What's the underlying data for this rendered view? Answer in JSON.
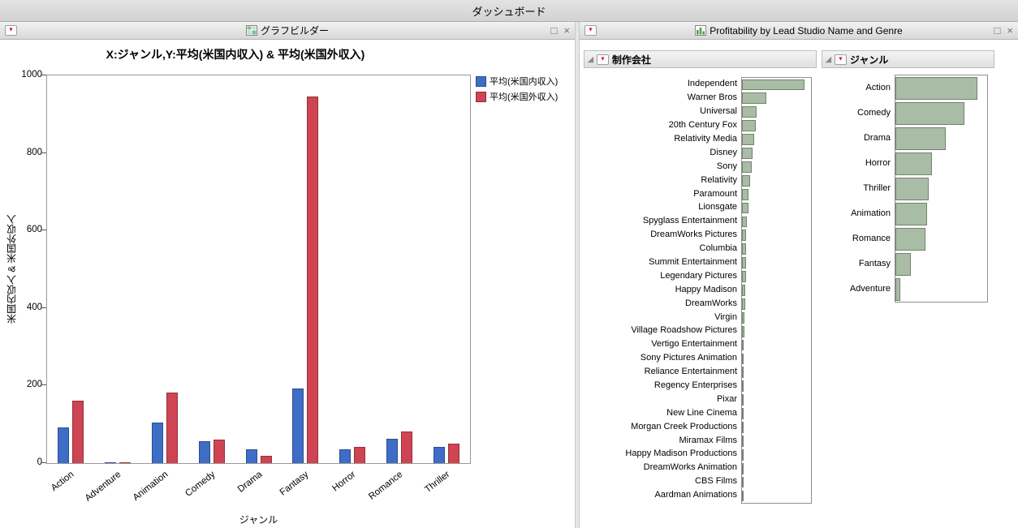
{
  "top_bar": {
    "title": "ダッシュボード"
  },
  "icons": {
    "red_triangle": "▼",
    "collapse": "◢",
    "maximize": "□",
    "close": "×"
  },
  "left_panel": {
    "title": "グラフビルダー"
  },
  "right_panel": {
    "title": "Profitability by Lead Studio Name and Genre"
  },
  "chart_data": [
    {
      "type": "bar",
      "title": "X:ジャンル,Y:平均(米国内収入) & 平均(米国外収入)",
      "xlabel": "ジャンル",
      "ylabel": "米国内収入 & 米国外収入",
      "ylim": [
        0,
        1000
      ],
      "yticks": [
        0,
        200,
        400,
        600,
        800,
        1000
      ],
      "grid": false,
      "legend_position": "right",
      "categories": [
        "Action",
        "Adventure",
        "Animation",
        "Comedy",
        "Drama",
        "Fantasy",
        "Horror",
        "Romance",
        "Thriller"
      ],
      "series": [
        {
          "name": "平均(米国内収入)",
          "color": "#3e6dc6",
          "values": [
            92,
            1,
            105,
            57,
            35,
            192,
            35,
            62,
            42
          ]
        },
        {
          "name": "平均(米国外収入)",
          "color": "#cf4452",
          "values": [
            162,
            1,
            182,
            60,
            18,
            945,
            42,
            82,
            50
          ]
        }
      ]
    },
    {
      "type": "bar",
      "orientation": "horizontal",
      "title": "制作会社",
      "units": "relative bar length (axis not shown), longest = 100",
      "categories": [
        "Independent",
        "Warner Bros",
        "Universal",
        "20th Century Fox",
        "Relativity Media",
        "Disney",
        "Sony",
        "Relativity",
        "Paramount",
        "Lionsgate",
        "Spyglass Entertainment",
        "DreamWorks Pictures",
        "Columbia",
        "Summit Entertainment",
        "Legendary Pictures",
        "Happy Madison",
        "DreamWorks",
        "Virgin",
        "Village Roadshow Pictures",
        "Vertigo Entertainment",
        "Sony Pictures Animation",
        "Reliance Entertainment",
        "Regency Enterprises",
        "Pixar",
        "New Line Cinema",
        "Morgan Creek Productions",
        "Miramax Films",
        "Happy Madison Productions",
        "DreamWorks Animation",
        "CBS Films",
        "Aardman Animations"
      ],
      "values": [
        100,
        39,
        24,
        22,
        20,
        17,
        15,
        13,
        11,
        10,
        8,
        7,
        7,
        6,
        6,
        5,
        5,
        4,
        3.5,
        3,
        3,
        2.5,
        2.5,
        2,
        2,
        1.5,
        1.5,
        1.2,
        1,
        0.8,
        0.5
      ]
    },
    {
      "type": "bar",
      "orientation": "horizontal",
      "title": "ジャンル",
      "units": "relative bar length (axis not shown), longest = 100",
      "categories": [
        "Action",
        "Comedy",
        "Drama",
        "Horror",
        "Thriller",
        "Animation",
        "Romance",
        "Fantasy",
        "Adventure"
      ],
      "values": [
        100,
        84,
        61,
        45,
        41,
        39,
        37,
        19,
        6
      ]
    }
  ]
}
